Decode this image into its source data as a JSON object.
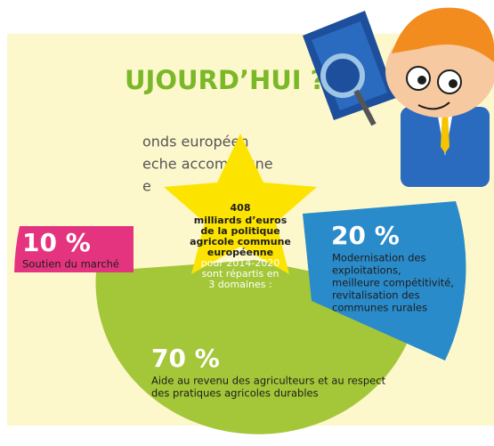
{
  "title": "UJOURD’HUI ?",
  "intro": [
    "onds européen",
    "eche accompagne",
    "e"
  ],
  "segments": [
    {
      "value": "10 %",
      "label": [
        "Soutien du marché"
      ]
    },
    {
      "value": "20 %",
      "label": [
        "Modernisation des",
        "exploitations,",
        "meilleure compétitivité,",
        "revitalisation des",
        "communes rurales"
      ]
    },
    {
      "value": "70 %",
      "label": [
        "Aide au revenu des agriculteurs et au respect",
        "des pratiques agricoles durables"
      ]
    }
  ],
  "star": {
    "amount": "408",
    "bold": [
      "milliards d’euros",
      "de la politique",
      "agricole commune",
      "européenne"
    ],
    "light": [
      "pour 2014-2020",
      "sont répartis en",
      "3 domaines :"
    ]
  }
}
